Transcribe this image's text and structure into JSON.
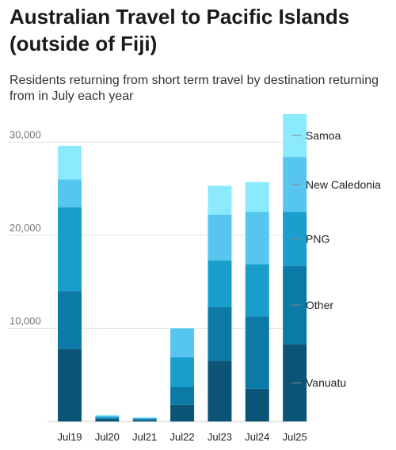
{
  "chart_data": {
    "type": "bar",
    "stacked": true,
    "title": "Australian Travel to Pacific Islands (outside of Fiji)",
    "subtitle": "Residents returning from short term travel by destination returning from in July each year",
    "categories": [
      "Jul19",
      "Jul20",
      "Jul21",
      "Jul22",
      "Jul23",
      "Jul24",
      "Jul25"
    ],
    "ylim": [
      0,
      33000
    ],
    "yticks": [
      10000,
      20000,
      30000
    ],
    "ytick_labels": [
      "10,000",
      "20,000",
      "30,000"
    ],
    "grid": true,
    "series": [
      {
        "name": "Vanuatu",
        "color": "#0b5478",
        "values": [
          7800,
          250,
          150,
          1800,
          6500,
          3500,
          8300
        ]
      },
      {
        "name": "Other",
        "color": "#0b7aa6",
        "values": [
          6200,
          150,
          100,
          1900,
          5800,
          7800,
          8400
        ]
      },
      {
        "name": "PNG",
        "color": "#1a9fcc",
        "values": [
          9000,
          100,
          80,
          3200,
          5000,
          5600,
          5800
        ]
      },
      {
        "name": "New Caledonia",
        "color": "#56c6f0",
        "values": [
          3000,
          100,
          70,
          3100,
          4900,
          5600,
          5900
        ]
      },
      {
        "name": "Samoa",
        "color": "#8ceaff",
        "values": [
          3600,
          100,
          50,
          0,
          3100,
          3200,
          4600
        ]
      }
    ],
    "label_order": [
      "Samoa",
      "New Caledonia",
      "PNG",
      "Other",
      "Vanuatu"
    ]
  }
}
